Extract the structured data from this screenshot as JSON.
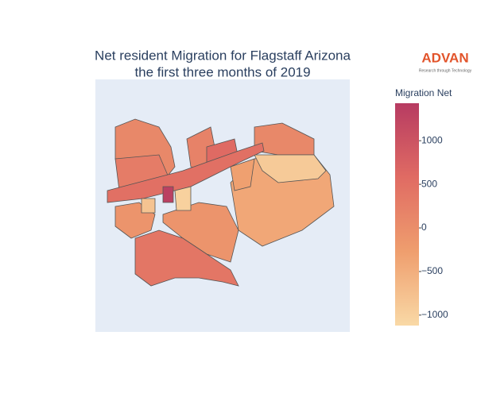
{
  "chart_data": {
    "type": "choropleth",
    "title": "Net resident Migration for Flagstaff Arizona",
    "subtitle": "the first three months of 2019",
    "colorbar_title": "Migration Net",
    "values": [
      100,
      300,
      200,
      100,
      -400,
      -900,
      600,
      -300,
      500,
      -100,
      -100,
      400,
      1350,
      -1000,
      -800
    ],
    "colorscale": [
      "#f9d9a6",
      "#ef9e6e",
      "#e06b63",
      "#b73b62"
    ],
    "clim": [
      -1120,
      1430
    ],
    "cticks": [
      {
        "value": -1000,
        "label": "−1000"
      },
      {
        "value": -500,
        "label": "−500"
      },
      0,
      500,
      1000
    ]
  },
  "logo": {
    "name": "ADVAN",
    "tagline": "Research through Technology"
  }
}
